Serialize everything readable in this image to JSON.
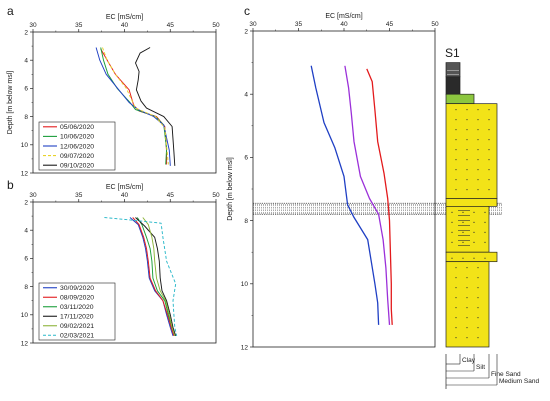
{
  "chart_data": [
    {
      "panel": "a",
      "type": "line",
      "xlabel": "EC [mS/cm]",
      "ylabel": "Depth [m below msl]",
      "xlim": [
        30,
        50
      ],
      "ylim": [
        2,
        12
      ],
      "xticks": [
        30,
        35,
        40,
        45,
        50
      ],
      "yticks": [
        2,
        4,
        6,
        8,
        10,
        12
      ],
      "x_axis": "top",
      "y_reversed": true,
      "grid": false,
      "legend": "bottom-left",
      "series": [
        {
          "name": "05/06/2020",
          "color": "#e31a1c",
          "dash": "",
          "x": [
            37.4,
            38.2,
            39.0,
            40.5,
            41.0,
            41.6,
            43.5,
            44.4,
            44.6,
            44.6
          ],
          "y": [
            3.2,
            4.1,
            5.0,
            6.1,
            7.2,
            7.6,
            8.0,
            8.7,
            10.5,
            11.4
          ]
        },
        {
          "name": "10/06/2020",
          "color": "#1b9e3a",
          "dash": "",
          "x": [
            37.4,
            37.7,
            38.2,
            39.2,
            40.6,
            41.2,
            43.4,
            44.3,
            44.6,
            44.5
          ],
          "y": [
            3.1,
            4.0,
            5.0,
            6.0,
            7.0,
            7.5,
            8.0,
            8.6,
            10.3,
            11.4
          ]
        },
        {
          "name": "12/06/2020",
          "color": "#1f3fc4",
          "dash": "",
          "x": [
            36.9,
            37.3,
            38.0,
            39.5,
            40.5,
            41.5,
            43.2,
            44.3,
            44.9,
            45.0
          ],
          "y": [
            3.1,
            4.0,
            5.0,
            6.2,
            7.0,
            7.5,
            8.0,
            8.6,
            10.4,
            11.5
          ]
        },
        {
          "name": "09/07/2020",
          "color": "#e8d22a",
          "dash": "3 2",
          "x": [
            37.6,
            38.1,
            39.0,
            40.2,
            41.2,
            43.4,
            44.4,
            44.8
          ],
          "y": [
            3.1,
            4.0,
            5.0,
            6.0,
            7.4,
            8.0,
            8.8,
            11.4
          ]
        },
        {
          "name": "09/10/2020",
          "color": "#1a1a1a",
          "dash": "",
          "x": [
            42.8,
            41.7,
            41.2,
            41.6,
            41.5,
            41.3,
            41.8,
            42.4,
            44.3,
            45.2,
            45.4,
            45.5
          ],
          "y": [
            3.1,
            3.5,
            4.2,
            4.8,
            5.4,
            6.1,
            6.9,
            7.4,
            8.0,
            8.7,
            10.5,
            11.5
          ]
        }
      ]
    },
    {
      "panel": "b",
      "type": "line",
      "xlabel": "EC [mS/cm]",
      "ylabel": "",
      "xlim": [
        30,
        50
      ],
      "ylim": [
        2,
        12
      ],
      "xticks": [
        30,
        35,
        40,
        45,
        50
      ],
      "yticks": [
        2,
        4,
        6,
        8,
        10,
        12
      ],
      "x_axis": "top",
      "y_reversed": true,
      "grid": false,
      "legend": "bottom-left",
      "series": [
        {
          "name": "30/09/2020",
          "color": "#1f3fc4",
          "dash": "",
          "x": [
            40.6,
            41.5,
            42.0,
            42.3,
            42.5,
            42.7,
            43.3,
            44.2,
            44.6,
            45.0,
            45.3
          ],
          "y": [
            3.1,
            3.6,
            4.5,
            5.3,
            6.2,
            7.4,
            8.3,
            9.0,
            10.0,
            10.9,
            11.5
          ]
        },
        {
          "name": "08/09/2020",
          "color": "#e31a1c",
          "dash": "",
          "x": [
            40.9,
            41.6,
            42.1,
            42.4,
            42.6,
            42.8,
            43.4,
            44.2,
            44.7,
            45.1,
            45.4
          ],
          "y": [
            3.1,
            3.6,
            4.5,
            5.3,
            6.2,
            7.4,
            8.3,
            9.0,
            10.0,
            10.9,
            11.5
          ]
        },
        {
          "name": "03/11/2020",
          "color": "#1b9e3a",
          "dash": "",
          "x": [
            41.4,
            41.9,
            42.4,
            42.8,
            43.0,
            43.1,
            43.6,
            44.4,
            44.8,
            45.2,
            45.5
          ],
          "y": [
            3.1,
            3.6,
            4.5,
            5.3,
            6.2,
            7.4,
            8.3,
            9.0,
            10.0,
            10.9,
            11.5
          ]
        },
        {
          "name": "17/11/2020",
          "color": "#1a1a1a",
          "dash": "",
          "x": [
            41.2,
            42.2,
            43.3,
            43.6,
            43.8,
            43.9,
            44.1,
            44.6,
            45.0,
            45.3,
            45.6
          ],
          "y": [
            3.1,
            3.7,
            4.5,
            5.3,
            6.2,
            7.4,
            8.3,
            9.0,
            10.0,
            10.9,
            11.5
          ]
        },
        {
          "name": "09/02/2021",
          "color": "#8db43a",
          "dash": "",
          "x": [
            42.0,
            42.6,
            43.0,
            43.2,
            43.3,
            43.5,
            43.9,
            44.5,
            44.9,
            45.2,
            45.5
          ],
          "y": [
            3.1,
            3.6,
            4.5,
            5.3,
            6.2,
            7.4,
            8.3,
            9.0,
            10.0,
            10.9,
            11.5
          ]
        },
        {
          "name": "02/03/2021",
          "color": "#29b8c9",
          "dash": "3 2",
          "x": [
            37.8,
            39.4,
            41.0,
            44.0,
            44.2,
            44.6,
            45.6,
            45.3,
            45.4,
            45.5,
            45.7
          ],
          "y": [
            3.1,
            3.2,
            3.3,
            3.5,
            4.5,
            6.2,
            7.8,
            9.0,
            10.0,
            10.9,
            11.5
          ]
        }
      ]
    },
    {
      "panel": "c",
      "type": "line",
      "xlabel": "EC [mS/cm]",
      "ylabel": "Depth [m below msl]",
      "xlim": [
        30,
        50
      ],
      "ylim": [
        2,
        12
      ],
      "xticks": [
        30,
        35,
        40,
        45,
        50
      ],
      "yticks": [
        2,
        4,
        6,
        8,
        10,
        12
      ],
      "x_axis": "top",
      "y_reversed": true,
      "grid": false,
      "legend": "none",
      "series": [
        {
          "name": "",
          "color": "#e31a1c",
          "dash": "",
          "x": [
            42.5,
            43.1,
            43.4,
            43.7,
            44.4,
            44.8,
            45.0,
            45.1,
            45.2,
            45.2,
            45.3
          ],
          "y": [
            3.2,
            3.6,
            4.5,
            5.5,
            6.5,
            7.3,
            8.0,
            9.0,
            10.0,
            10.8,
            11.3
          ]
        },
        {
          "name": "",
          "color": "#9b30d9",
          "dash": "",
          "x": [
            40.1,
            40.5,
            40.8,
            41.1,
            41.8,
            42.8,
            43.8,
            44.3,
            44.6,
            44.8,
            45.0
          ],
          "y": [
            3.1,
            3.8,
            4.6,
            5.5,
            6.6,
            7.3,
            7.8,
            8.6,
            9.5,
            10.5,
            11.3
          ]
        },
        {
          "name": "",
          "color": "#1f3fc4",
          "dash": "",
          "x": [
            36.4,
            36.9,
            37.8,
            39.0,
            40.0,
            40.4,
            41.1,
            42.6,
            43.0,
            43.4,
            43.7,
            43.8
          ],
          "y": [
            3.1,
            3.8,
            4.9,
            5.7,
            6.6,
            7.5,
            7.9,
            8.6,
            9.3,
            10.0,
            10.6,
            11.3
          ]
        }
      ],
      "hatched_band": [
        7.45,
        7.8
      ]
    }
  ],
  "figure": {
    "panel_labels": [
      "a",
      "b",
      "c"
    ],
    "lithology": {
      "title": "S1",
      "layers": [
        {
          "top": 3.0,
          "bottom": 3.45,
          "fill": "#555555",
          "grain": "Clay"
        },
        {
          "top": 3.45,
          "bottom": 4.0,
          "fill": "#2a2a2a",
          "grain": "Clay"
        },
        {
          "top": 4.0,
          "bottom": 4.3,
          "fill": "#8cc63f",
          "grain": "Silt"
        },
        {
          "top": 4.3,
          "bottom": 7.3,
          "fill": "#f2e318",
          "grain": "Medium Sand"
        },
        {
          "top": 7.3,
          "bottom": 7.55,
          "fill": "#f2e318",
          "grain": "Medium Sand"
        },
        {
          "top": 7.55,
          "bottom": 9.0,
          "fill": "#f2e318",
          "grain": "Fine Sand"
        },
        {
          "top": 9.0,
          "bottom": 9.3,
          "fill": "#f2e318",
          "grain": "Medium Sand"
        },
        {
          "top": 9.3,
          "bottom": 12.0,
          "fill": "#f2e318",
          "grain": "Fine Sand"
        }
      ],
      "grain_scale": [
        "Clay",
        "Silt",
        "Fine Sand",
        "Medium Sand"
      ]
    }
  }
}
